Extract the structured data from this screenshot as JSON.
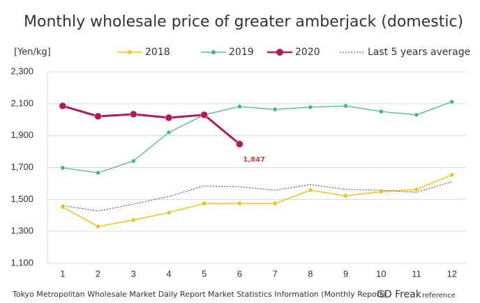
{
  "chart_data": {
    "type": "line",
    "title": "Monthly wholesale price of greater amberjack (domestic)",
    "y_label": "[Yen/kg]",
    "source": "Tokyo Metropolitan Wholesale Market Daily Report Market Statistics Information (Monthly Report)",
    "brand": "GD Freak",
    "brand_note": "reference",
    "x": [
      1,
      2,
      3,
      4,
      5,
      6,
      7,
      8,
      9,
      10,
      11,
      12
    ],
    "xlim": [
      0.57,
      12.4
    ],
    "xticks": [
      1,
      2,
      3,
      4,
      5,
      6,
      7,
      8,
      9,
      10,
      11,
      12
    ],
    "ylim": [
      1100,
      2300
    ],
    "yticks": [
      {
        "value": 1100,
        "label": "1,100"
      },
      {
        "value": 1300,
        "label": "1,300"
      },
      {
        "value": 1500,
        "label": "1,500"
      },
      {
        "value": 1700,
        "label": "1,700"
      },
      {
        "value": 1900,
        "label": "1,900"
      },
      {
        "value": 2100,
        "label": "2,100"
      },
      {
        "value": 2300,
        "label": "2,300"
      }
    ],
    "grid": true,
    "series": [
      {
        "name": "2018",
        "color": "#f2c21b",
        "values": [
          1453,
          1331,
          1371,
          1418,
          1475,
          1475,
          1475,
          1558,
          1523,
          1549,
          1563,
          1654
        ]
      },
      {
        "name": "2019",
        "color": "#3cb878",
        "values": [
          1698,
          1667,
          1741,
          1920,
          2030,
          2082,
          2064,
          2078,
          2086,
          2051,
          2030,
          2112
        ]
      },
      {
        "name": "2020",
        "color": "#b0185c",
        "values": [
          2086,
          2021,
          2034,
          2012,
          2030,
          1847,
          null,
          null,
          null,
          null,
          null,
          null
        ],
        "value_labels": [
          null,
          null,
          null,
          null,
          null,
          "1,847",
          null,
          null,
          null,
          null,
          null,
          null
        ]
      },
      {
        "name": "Last 5 years average",
        "color": "#444444",
        "line_style": "dotted",
        "markers": false,
        "values": [
          1462,
          1427,
          1471,
          1519,
          1584,
          1580,
          1558,
          1593,
          1563,
          1558,
          1545,
          1611
        ]
      }
    ]
  }
}
